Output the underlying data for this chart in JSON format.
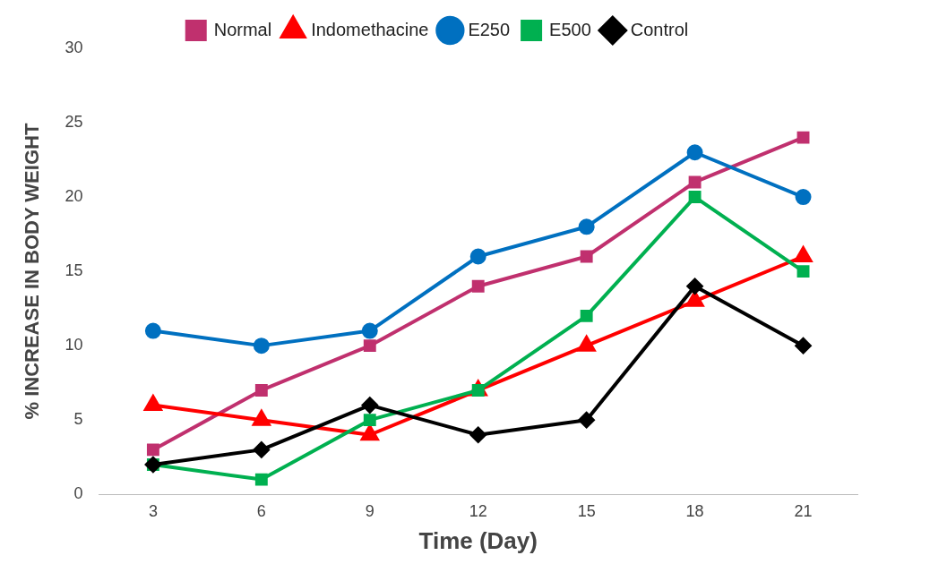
{
  "chart_data": {
    "type": "line",
    "xlabel": "Time (Day)",
    "ylabel": "% INCREASE IN BODY WEIGHT",
    "categories": [
      "3",
      "6",
      "9",
      "12",
      "15",
      "18",
      "21"
    ],
    "ylim": [
      0,
      30
    ],
    "yticks": [
      0,
      5,
      10,
      15,
      20,
      25,
      30
    ],
    "grid": false,
    "legend": "top",
    "line_style": "solid",
    "series": [
      {
        "name": "Normal",
        "color": "#c0306e",
        "marker": "square",
        "values": [
          3,
          7,
          10,
          14,
          16,
          21,
          24
        ]
      },
      {
        "name": "Indomethacine",
        "color": "#ff0000",
        "marker": "triangle",
        "values": [
          6,
          5,
          4,
          7,
          10,
          13,
          16
        ]
      },
      {
        "name": "E250",
        "color": "#0070c0",
        "marker": "circle",
        "values": [
          11,
          10,
          11,
          16,
          18,
          23,
          20
        ]
      },
      {
        "name": "E500",
        "color": "#00b050",
        "marker": "square",
        "values": [
          2,
          1,
          5,
          7,
          12,
          20,
          15
        ]
      },
      {
        "name": "Control",
        "color": "#000000",
        "marker": "diamond",
        "values": [
          2,
          3,
          6,
          4,
          5,
          14,
          10
        ]
      }
    ]
  }
}
